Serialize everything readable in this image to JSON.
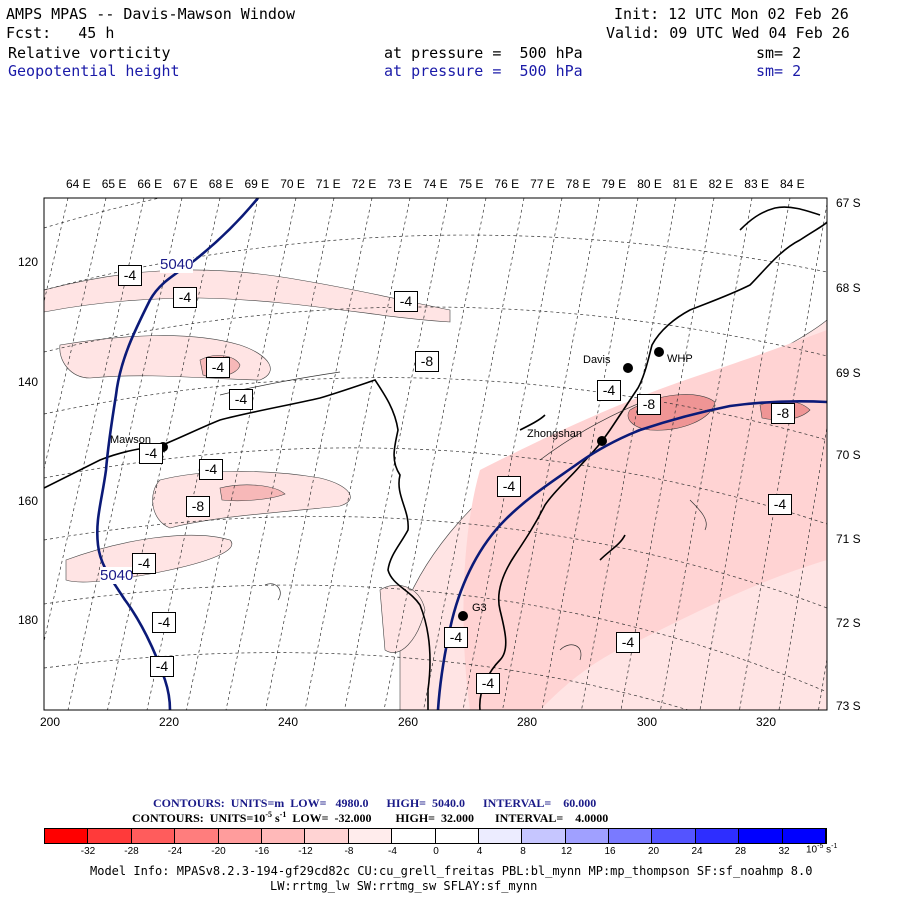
{
  "header": {
    "title": "AMPS MPAS -- Davis-Mawson Window",
    "init": "Init: 12 UTC Mon 02 Feb 26",
    "fcst": "Fcst:   45 h",
    "valid": "Valid: 09 UTC Wed 04 Feb 26",
    "field1": {
      "name": "Relative vorticity",
      "level": "at pressure =  500 hPa",
      "sm": "sm= 2"
    },
    "field2": {
      "name": "Geopotential height",
      "level": "at pressure =  500 hPa",
      "sm": "sm= 2"
    }
  },
  "map": {
    "top_longitudes": [
      "64 E",
      "65 E",
      "66 E",
      "67 E",
      "68 E",
      "69 E",
      "70 E",
      "71 E",
      "72 E",
      "73 E",
      "74 E",
      "75 E",
      "76 E",
      "77 E",
      "78 E",
      "79 E",
      "80 E",
      "81 E",
      "82 E",
      "83 E",
      "84 E"
    ],
    "right_latitudes": [
      "67 S",
      "68 S",
      "69 S",
      "70 S",
      "71 S",
      "72 S",
      "73 S"
    ],
    "x_ticks": [
      "200",
      "220",
      "240",
      "260",
      "280",
      "300",
      "320"
    ],
    "y_ticks": [
      "120",
      "140",
      "160",
      "180"
    ],
    "stations": [
      "Davis",
      "WHP",
      "Mawson",
      "Zhongshan",
      "G3"
    ],
    "height_labels": [
      "5040",
      "5040"
    ],
    "vorticity_labels": [
      "-4",
      "-4",
      "-4",
      "-8",
      "-4",
      "-4",
      "-4",
      "-8",
      "-4",
      "-4",
      "-4",
      "-4",
      "-4",
      "-4",
      "-4",
      "-4",
      "-4",
      "-8",
      "-8",
      "-4"
    ],
    "colors": {
      "height_contour": "#0b1a78",
      "coast": "#000000",
      "light_pink": "#ffe4e4",
      "mid_pink": "#f7b8b8",
      "dark_pink": "#ef9595"
    }
  },
  "contours_info": {
    "line1": "CONTOURS:  UNITS=m  LOW=   4980.0      HIGH=  5040.0      INTERVAL=    60.000",
    "line2_pre": "CONTOURS:  UNITS=10",
    "line2_exp": "-5",
    "line2_mid": " s",
    "line2_exp2": "-1",
    "line2_post": "  LOW=  -32.000        HIGH=  32.000       INTERVAL=    4.0000"
  },
  "colorbar": {
    "labels": [
      "-32",
      "-28",
      "-24",
      "-20",
      "-16",
      "-12",
      "-8",
      "-4",
      "0",
      "4",
      "8",
      "12",
      "16",
      "20",
      "24",
      "28",
      "32"
    ],
    "unit_base": "10",
    "unit_exp": "-5",
    "unit_s": "s",
    "unit_s_exp": "-1",
    "colors": [
      "#ff0000",
      "#ff3a3a",
      "#ff5c5c",
      "#ff7d7d",
      "#ff9c9c",
      "#ffb9b9",
      "#ffd3d3",
      "#ffecec",
      "#ffffff",
      "#ffffff",
      "#ececff",
      "#c6c6ff",
      "#a0a0ff",
      "#7a7aff",
      "#5454ff",
      "#2e2eff",
      "#0000ff",
      "#0000ff"
    ]
  },
  "model_info": {
    "line1": "Model Info: MPASv8.2.3-194-gf29cd82c CU:cu_grell_freitas PBL:bl_mynn MP:mp_thompson SF:sf_noahmp 8.0",
    "line2": "LW:rrtmg_lw SW:rrtmg_sw SFLAY:sf_mynn"
  }
}
